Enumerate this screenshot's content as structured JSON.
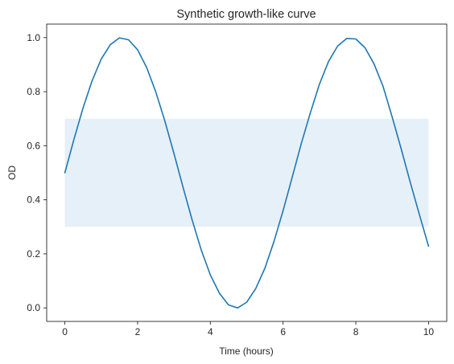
{
  "chart_data": {
    "type": "line",
    "title": "Synthetic growth-like curve",
    "xlabel": "Time (hours)",
    "ylabel": "OD",
    "xlim": [
      -0.5,
      10.5
    ],
    "ylim": [
      -0.05,
      1.05
    ],
    "x_ticks": [
      0,
      2,
      4,
      6,
      8,
      10
    ],
    "x_tick_labels": [
      "0",
      "2",
      "4",
      "6",
      "8",
      "10"
    ],
    "y_ticks": [
      0.0,
      0.2,
      0.4,
      0.6,
      0.8,
      1.0
    ],
    "y_tick_labels": [
      "0.0",
      "0.2",
      "0.4",
      "0.6",
      "0.8",
      "1.0"
    ],
    "grid": false,
    "band": {
      "x": [
        0,
        10
      ],
      "y": [
        0.3,
        0.7
      ],
      "color": "#e6f0f8"
    },
    "series": [
      {
        "color": "#1f77b4",
        "x": [
          0,
          0.25,
          0.5,
          0.75,
          1.0,
          1.25,
          1.5,
          1.75,
          2.0,
          2.25,
          2.5,
          2.75,
          3.0,
          3.25,
          3.5,
          3.75,
          4.0,
          4.25,
          4.5,
          4.75,
          5.0,
          5.25,
          5.5,
          5.75,
          6.0,
          6.25,
          6.5,
          6.75,
          7.0,
          7.25,
          7.5,
          7.75,
          8.0,
          8.25,
          8.5,
          8.75,
          9.0,
          9.25,
          9.5,
          9.75,
          10.0
        ],
        "y": [
          0.5,
          0.624,
          0.74,
          0.841,
          0.921,
          0.974,
          0.999,
          0.992,
          0.955,
          0.889,
          0.799,
          0.691,
          0.571,
          0.446,
          0.325,
          0.214,
          0.122,
          0.054,
          0.011,
          0.0,
          0.021,
          0.072,
          0.147,
          0.246,
          0.36,
          0.483,
          0.608,
          0.722,
          0.828,
          0.912,
          0.969,
          0.997,
          0.995,
          0.963,
          0.903,
          0.819,
          0.706,
          0.587,
          0.463,
          0.344,
          0.228
        ]
      }
    ]
  },
  "colors": {
    "axes": "#262626",
    "line": "#1f77b4",
    "band": "#e6f0f8"
  }
}
